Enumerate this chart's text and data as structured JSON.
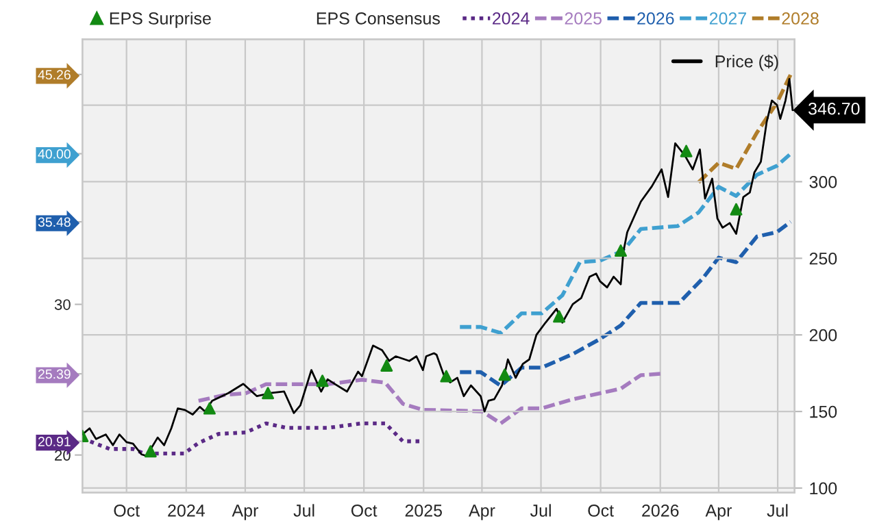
{
  "chart_data": {
    "type": "line",
    "legend_title": "EPS Consensus",
    "legend": "top",
    "grid": true,
    "xlim": [
      "2023-07-25",
      "2026-07-27"
    ],
    "xticks": [
      {
        "value": "2023-10-01",
        "label": "Oct"
      },
      {
        "value": "2024-01-01",
        "label": "2024"
      },
      {
        "value": "2024-04-01",
        "label": "Apr"
      },
      {
        "value": "2024-07-01",
        "label": "Jul"
      },
      {
        "value": "2024-10-01",
        "label": "Oct"
      },
      {
        "value": "2025-01-01",
        "label": "2025"
      },
      {
        "value": "2025-04-01",
        "label": "Apr"
      },
      {
        "value": "2025-07-01",
        "label": "Jul"
      },
      {
        "value": "2025-10-01",
        "label": "Oct"
      },
      {
        "value": "2026-01-01",
        "label": "2026"
      },
      {
        "value": "2026-04-01",
        "label": "Apr"
      },
      {
        "value": "2026-07-01",
        "label": "Jul"
      }
    ],
    "ylim": [
      17.5,
      47.6
    ],
    "yticks": [
      20,
      {
        "value": 20.91,
        "label": "20.91"
      },
      {
        "value": 25.39,
        "label": "25.39"
      },
      30,
      {
        "value": 35.48,
        "label": "35.48"
      },
      {
        "value": 40.0,
        "label": "40.00"
      },
      {
        "value": 45.26,
        "label": "45.26"
      }
    ],
    "y2lim": [
      97,
      393
    ],
    "y2ticks": [
      100,
      150,
      200,
      250,
      300,
      {
        "value": 350,
        "label": null
      }
    ],
    "series": [
      {
        "name": "2024",
        "color": "#5b2a86",
        "line_style": "dotted",
        "x": [
          "2023-07-25",
          "2023-09-05",
          "2023-10-11",
          "2023-10-28",
          "2023-11-20",
          "2023-12-29",
          "2024-01-20",
          "2024-02-20",
          "2024-04-02",
          "2024-05-03",
          "2024-06-04",
          "2024-08-06",
          "2024-09-28",
          "2024-11-03",
          "2024-11-30",
          "2024-12-27"
        ],
        "values": [
          21.1,
          20.4,
          20.4,
          20.1,
          20.1,
          20.1,
          20.8,
          21.4,
          21.5,
          22.1,
          21.8,
          21.8,
          22.1,
          22.1,
          20.91,
          20.91
        ]
      },
      {
        "name": "2025",
        "color": "#a57bbf",
        "line_style": "dashed",
        "x": [
          "2024-01-20",
          "2024-03-02",
          "2024-04-02",
          "2024-05-03",
          "2024-06-04",
          "2024-08-06",
          "2024-09-28",
          "2024-11-03",
          "2024-11-30",
          "2024-12-31",
          "2025-04-01",
          "2025-04-30",
          "2025-06-01",
          "2025-07-02",
          "2025-08-19",
          "2025-09-30",
          "2025-11-01",
          "2025-12-02",
          "2026-01-01"
        ],
        "values": [
          23.6,
          24.0,
          24.1,
          24.7,
          24.7,
          24.7,
          25.0,
          24.8,
          23.4,
          23.0,
          22.9,
          22.1,
          23.1,
          23.1,
          23.7,
          24.1,
          24.4,
          25.3,
          25.39
        ]
      },
      {
        "name": "2026",
        "color": "#1f5fad",
        "line_style": "dashed",
        "x": [
          "2025-02-26",
          "2025-03-30",
          "2025-04-30",
          "2025-06-01",
          "2025-07-02",
          "2025-08-19",
          "2025-09-30",
          "2025-11-01",
          "2025-12-02",
          "2026-01-01",
          "2026-01-30",
          "2026-03-07",
          "2026-04-01",
          "2026-04-28",
          "2026-05-30",
          "2026-06-30",
          "2026-07-21"
        ],
        "values": [
          25.5,
          25.5,
          24.6,
          25.8,
          25.8,
          26.7,
          27.7,
          28.6,
          30.1,
          30.1,
          30.1,
          31.7,
          33.1,
          32.8,
          34.5,
          34.8,
          35.48
        ]
      },
      {
        "name": "2027",
        "color": "#3fa0d0",
        "line_style": "dashed",
        "x": [
          "2025-02-26",
          "2025-03-30",
          "2025-04-30",
          "2025-06-01",
          "2025-07-02",
          "2025-08-03",
          "2025-08-30",
          "2025-09-30",
          "2025-11-01",
          "2025-11-11",
          "2025-12-02",
          "2026-01-28",
          "2026-03-01",
          "2026-04-01",
          "2026-04-28",
          "2026-05-30",
          "2026-06-30",
          "2026-07-21"
        ],
        "values": [
          28.5,
          28.5,
          28.1,
          29.4,
          29.4,
          30.6,
          32.8,
          32.9,
          33.5,
          33.9,
          35.0,
          35.2,
          36.1,
          37.8,
          37.2,
          38.6,
          39.2,
          40.0
        ]
      },
      {
        "name": "2028",
        "color": "#b07d2a",
        "line_style": "dashed",
        "x": [
          "2026-03-01",
          "2026-04-01",
          "2026-04-28",
          "2026-05-30",
          "2026-06-30",
          "2026-07-21"
        ],
        "values": [
          38.1,
          39.4,
          39.0,
          41.4,
          43.4,
          45.26
        ]
      },
      {
        "name": "Price ($)",
        "color": "#000000",
        "line_style": "solid",
        "axis": "y2",
        "x": [
          "2023-07-25",
          "2023-08-05",
          "2023-08-15",
          "2023-08-30",
          "2023-09-10",
          "2023-09-20",
          "2023-10-01",
          "2023-10-11",
          "2023-10-24",
          "2023-11-01",
          "2023-11-18",
          "2023-11-28",
          "2023-12-09",
          "2023-12-19",
          "2023-12-30",
          "2024-01-11",
          "2024-01-22",
          "2024-01-30",
          "2024-02-10",
          "2024-02-20",
          "2024-03-06",
          "2024-03-29",
          "2024-04-19",
          "2024-05-10",
          "2024-05-31",
          "2024-06-15",
          "2024-06-25",
          "2024-07-12",
          "2024-07-27",
          "2024-08-06",
          "2024-08-17",
          "2024-09-05",
          "2024-09-22",
          "2024-09-28",
          "2024-10-15",
          "2024-10-29",
          "2024-11-09",
          "2024-11-19",
          "2024-12-10",
          "2024-12-21",
          "2024-12-31",
          "2025-01-05",
          "2025-01-17",
          "2025-01-21",
          "2025-02-01",
          "2025-02-11",
          "2025-02-22",
          "2025-03-04",
          "2025-03-15",
          "2025-03-30",
          "2025-04-05",
          "2025-04-11",
          "2025-04-20",
          "2025-05-02",
          "2025-05-11",
          "2025-05-23",
          "2025-06-03",
          "2025-06-13",
          "2025-06-24",
          "2025-07-08",
          "2025-07-25",
          "2025-08-03",
          "2025-08-19",
          "2025-09-01",
          "2025-09-14",
          "2025-09-24",
          "2025-09-30",
          "2025-10-11",
          "2025-10-21",
          "2025-11-01",
          "2025-11-05",
          "2025-11-11",
          "2025-12-02",
          "2025-12-19",
          "2026-01-03",
          "2026-01-13",
          "2026-01-24",
          "2026-02-08",
          "2026-02-20",
          "2026-03-03",
          "2026-03-11",
          "2026-03-22",
          "2026-03-30",
          "2026-04-07",
          "2026-04-18",
          "2026-04-28",
          "2026-05-09",
          "2026-05-19",
          "2026-05-26",
          "2026-06-05",
          "2026-06-14",
          "2026-06-22",
          "2026-06-30",
          "2026-07-05",
          "2026-07-13",
          "2026-07-19",
          "2026-07-24"
        ],
        "values": [
          135,
          139,
          132,
          135,
          128,
          135,
          130,
          129,
          122,
          121,
          133,
          128,
          139,
          152,
          151,
          148,
          153,
          150,
          157,
          159,
          162,
          168,
          160,
          162,
          163,
          149,
          154,
          177,
          163,
          171,
          168,
          163,
          176,
          173,
          193,
          190,
          183,
          186,
          183,
          186,
          177,
          186,
          188,
          187,
          174,
          169,
          172,
          160,
          167,
          160,
          150,
          157,
          158,
          167,
          184,
          172,
          181,
          184,
          200,
          208,
          217,
          208,
          220,
          224,
          238,
          240,
          235,
          231,
          238,
          233,
          254,
          267,
          287,
          297,
          308,
          290,
          325,
          317,
          308,
          321,
          289,
          302,
          276,
          270,
          273,
          266,
          290,
          293,
          306,
          313,
          339,
          353,
          350,
          341,
          353,
          367,
          346.7
        ],
        "value_labels": [
          null,
          null,
          null,
          null,
          null,
          null,
          null,
          null,
          null,
          null,
          null,
          null,
          null,
          null,
          null,
          null,
          null,
          null,
          null,
          null,
          null,
          null,
          null,
          null,
          null,
          null,
          null,
          null,
          null,
          null,
          null,
          null,
          null,
          null,
          null,
          null,
          null,
          null,
          null,
          null,
          null,
          null,
          null,
          null,
          null,
          null,
          null,
          null,
          null,
          null,
          null,
          null,
          null,
          null,
          null,
          null,
          null,
          null,
          null,
          null,
          null,
          null,
          null,
          null,
          null,
          null,
          null,
          null,
          null,
          null,
          null,
          null,
          null,
          null,
          null,
          null,
          null,
          null,
          null,
          null,
          null,
          null,
          null,
          null,
          null,
          null,
          null,
          null,
          null,
          null,
          null,
          null,
          null,
          null,
          null,
          null,
          "346.70"
        ]
      },
      {
        "name": "EPS Surprise",
        "type": "scatter",
        "marker": "triangle",
        "color": "#138a13",
        "axis": "y2",
        "x": [
          "2023-07-25",
          "2023-11-07",
          "2024-02-06",
          "2024-05-06",
          "2024-07-29",
          "2024-11-05",
          "2025-02-05",
          "2025-05-06",
          "2025-07-29",
          "2025-11-01",
          "2026-02-10",
          "2026-04-28"
        ],
        "values": [
          134,
          124,
          152,
          162,
          170,
          180,
          173,
          174,
          212,
          255,
          320,
          282
        ]
      }
    ]
  }
}
